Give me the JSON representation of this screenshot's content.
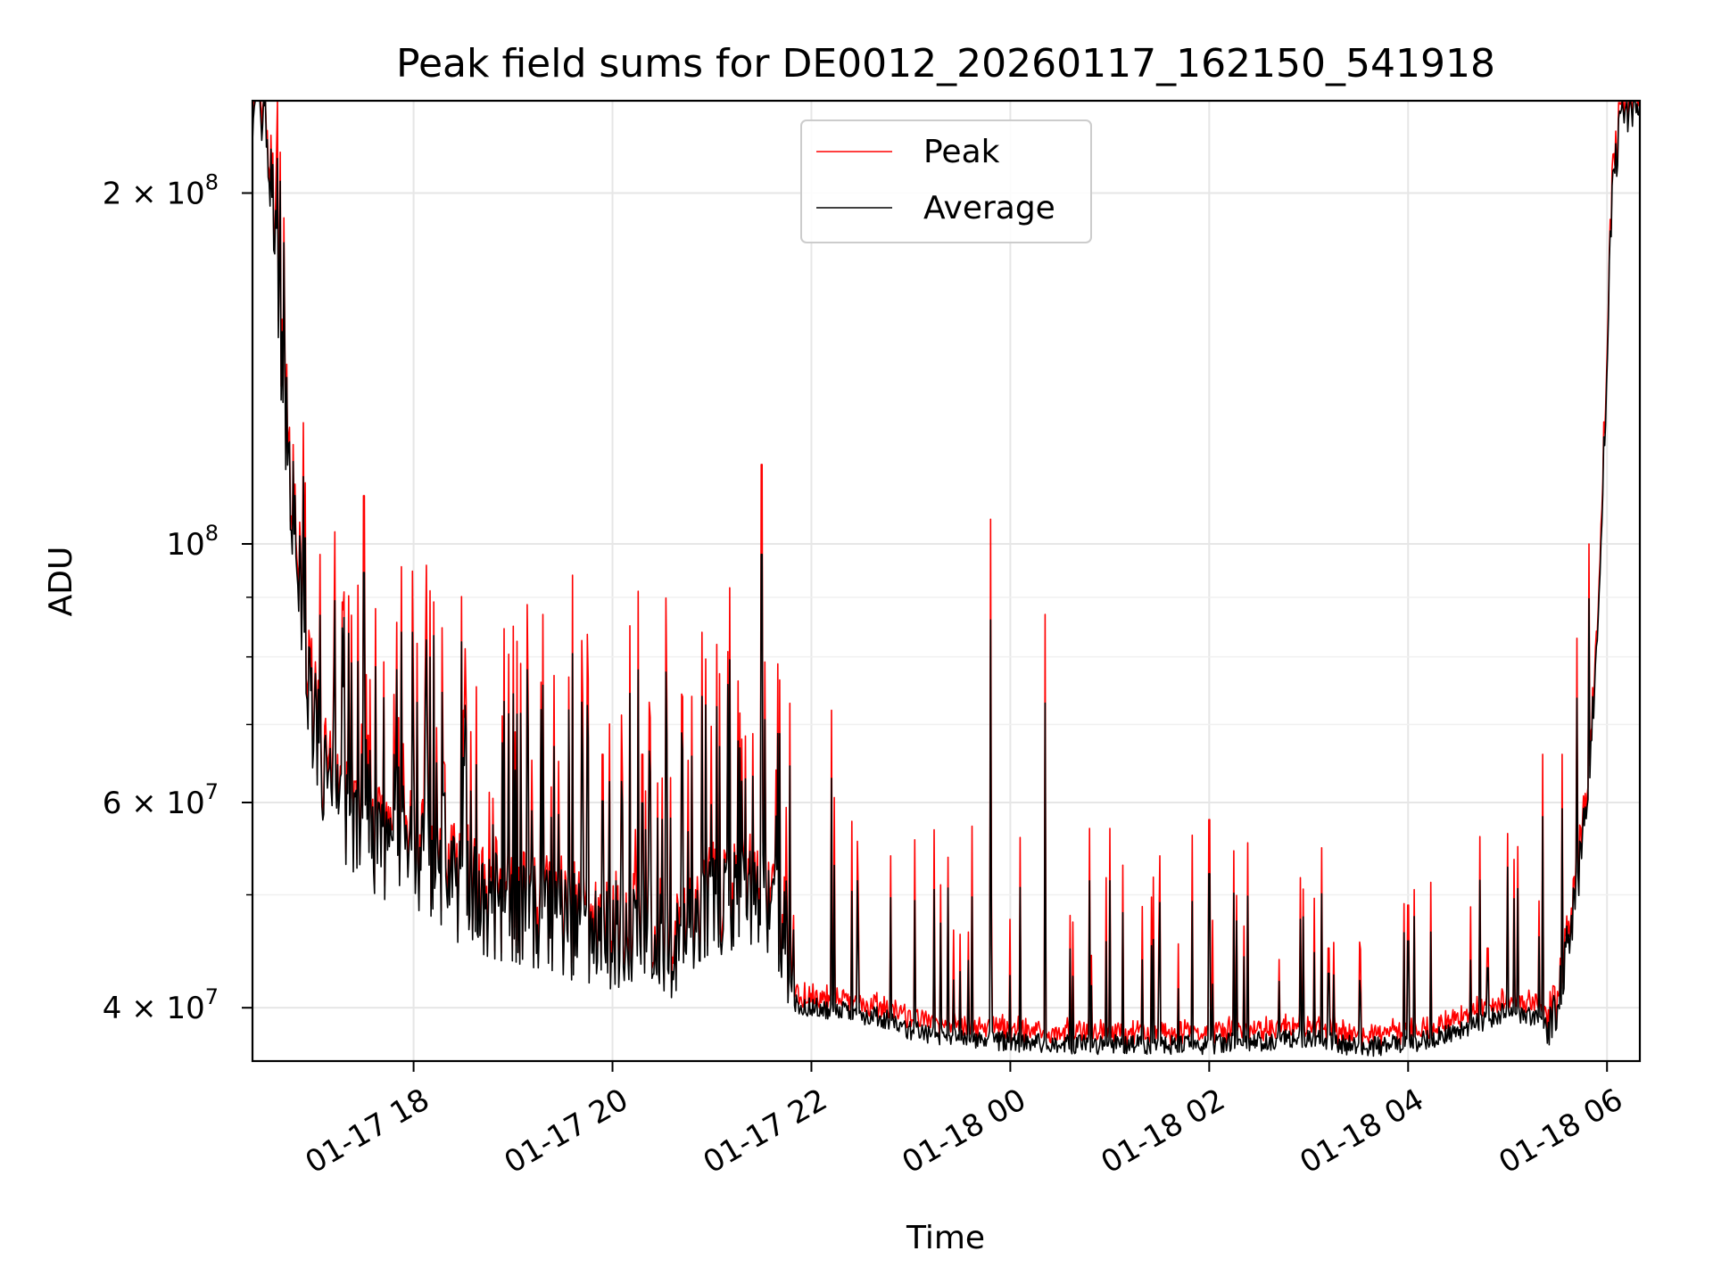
{
  "chart_data": {
    "type": "line",
    "title": "Peak field sums for DE0012_20260117_162150_541918",
    "xlabel": "Time",
    "ylabel": "ADU",
    "yscale": "log",
    "ylim": [
      36000000,
      240000000
    ],
    "xlim_hours": [
      16.38,
      30.33
    ],
    "grid": true,
    "legend_position": "top-center",
    "x_ticks": [
      {
        "hour": 18,
        "label": "01-17 18"
      },
      {
        "hour": 20,
        "label": "01-17 20"
      },
      {
        "hour": 22,
        "label": "01-17 22"
      },
      {
        "hour": 24,
        "label": "01-18 00"
      },
      {
        "hour": 26,
        "label": "01-18 02"
      },
      {
        "hour": 28,
        "label": "01-18 04"
      },
      {
        "hour": 30,
        "label": "01-18 06"
      }
    ],
    "y_major_ticks": [
      {
        "value": 40000000,
        "base": "4 × 10",
        "exp": "7"
      },
      {
        "value": 60000000,
        "base": "6 × 10",
        "exp": "7"
      },
      {
        "value": 100000000,
        "base": "10",
        "exp": "8"
      },
      {
        "value": 200000000,
        "base": "2 × 10",
        "exp": "8"
      }
    ],
    "y_minor_ticks": [
      50000000,
      70000000,
      80000000,
      90000000
    ],
    "series_style": [
      {
        "name": "Peak",
        "color": "#ff0000"
      },
      {
        "name": "Average",
        "color": "#000000"
      }
    ],
    "baseline": [
      [
        16.38,
        240000000
      ],
      [
        16.5,
        230000000
      ],
      [
        16.6,
        180000000
      ],
      [
        16.7,
        130000000
      ],
      [
        16.8,
        100000000
      ],
      [
        16.95,
        72000000
      ],
      [
        17.1,
        62000000
      ],
      [
        17.3,
        56000000
      ],
      [
        17.6,
        54000000
      ],
      [
        18.0,
        52000000
      ],
      [
        18.5,
        49000000
      ],
      [
        19.0,
        47000000
      ],
      [
        19.5,
        46000000
      ],
      [
        20.0,
        45000000
      ],
      [
        20.5,
        44000000
      ],
      [
        20.8,
        44500000
      ],
      [
        21.0,
        48000000
      ],
      [
        21.5,
        49000000
      ],
      [
        21.7,
        46000000
      ],
      [
        21.85,
        40000000
      ],
      [
        22.3,
        39500000
      ],
      [
        22.7,
        39000000
      ],
      [
        23.0,
        38000000
      ],
      [
        23.5,
        37500000
      ],
      [
        24.0,
        37200000
      ],
      [
        24.5,
        37000000
      ],
      [
        25.0,
        37000000
      ],
      [
        25.5,
        37000000
      ],
      [
        26.0,
        37000000
      ],
      [
        26.5,
        37200000
      ],
      [
        27.0,
        37500000
      ],
      [
        27.5,
        36800000
      ],
      [
        28.0,
        37000000
      ],
      [
        28.5,
        38000000
      ],
      [
        29.0,
        39500000
      ],
      [
        29.3,
        39000000
      ],
      [
        29.45,
        38000000
      ],
      [
        29.55,
        42000000
      ],
      [
        29.7,
        50000000
      ],
      [
        29.8,
        60000000
      ],
      [
        29.9,
        80000000
      ],
      [
        30.0,
        140000000
      ],
      [
        30.05,
        200000000
      ],
      [
        30.15,
        230000000
      ],
      [
        30.33,
        240000000
      ]
    ],
    "peak_spikes": [
      [
        17.2,
        80000000
      ],
      [
        17.35,
        90000000
      ],
      [
        17.5,
        110000000
      ],
      [
        17.62,
        88000000
      ],
      [
        18.0,
        75000000
      ],
      [
        18.3,
        65000000
      ],
      [
        18.5,
        72000000
      ],
      [
        19.0,
        85000000
      ],
      [
        19.3,
        87000000
      ],
      [
        19.6,
        94000000
      ],
      [
        19.7,
        74000000
      ],
      [
        19.9,
        66000000
      ],
      [
        20.3,
        66000000
      ],
      [
        20.8,
        74000000
      ],
      [
        21.05,
        82000000
      ],
      [
        21.3,
        68000000
      ],
      [
        21.5,
        117000000
      ],
      [
        21.78,
        73000000
      ],
      [
        22.2,
        72000000
      ],
      [
        22.8,
        54000000
      ],
      [
        23.3,
        51000000
      ],
      [
        23.8,
        105000000
      ],
      [
        24.1,
        56000000
      ],
      [
        24.35,
        87000000
      ],
      [
        24.6,
        48000000
      ],
      [
        24.8,
        57000000
      ],
      [
        25.0,
        57000000
      ],
      [
        25.5,
        54000000
      ],
      [
        26.0,
        58000000
      ],
      [
        26.35,
        47000000
      ],
      [
        26.7,
        44000000
      ],
      [
        27.2,
        45000000
      ],
      [
        28.0,
        49000000
      ],
      [
        28.8,
        45000000
      ],
      [
        29.1,
        55000000
      ],
      [
        29.35,
        66000000
      ],
      [
        29.55,
        66000000
      ],
      [
        29.7,
        83000000
      ],
      [
        29.82,
        100000000
      ]
    ]
  }
}
